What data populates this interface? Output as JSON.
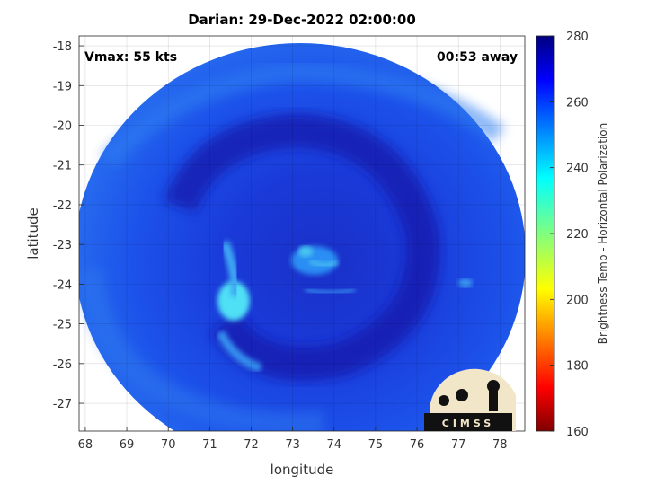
{
  "title": "Darian: 29-Dec-2022 02:00:00",
  "annotations": {
    "vmax": "Vmax: 55 kts",
    "time_away": "00:53 away"
  },
  "axes": {
    "xlabel": "longitude",
    "ylabel": "latitude",
    "xlim": [
      67.85,
      78.6
    ],
    "ylim": [
      -27.7,
      -17.75
    ],
    "xticks": [
      "68",
      "69",
      "70",
      "71",
      "72",
      "73",
      "74",
      "75",
      "76",
      "77",
      "78"
    ],
    "yticks": [
      "-18",
      "-19",
      "-20",
      "-21",
      "-22",
      "-23",
      "-24",
      "-25",
      "-26",
      "-27"
    ],
    "grid": true
  },
  "colorbar": {
    "label": "Brightness Temp - Horizontal Polarization",
    "ticks": [
      "280",
      "260",
      "240",
      "220",
      "200",
      "180",
      "160"
    ],
    "range": [
      160,
      280
    ],
    "colormap": "jet"
  },
  "logo": {
    "text": "CIMSS"
  },
  "colors": {
    "swath_base": "#1846e6",
    "swath_deep": "#1020b8",
    "eye_cyan": "#48c8f0",
    "band_cyan": "#50e0f5"
  },
  "storm_center": {
    "lon": 73.5,
    "lat": -23.4
  }
}
